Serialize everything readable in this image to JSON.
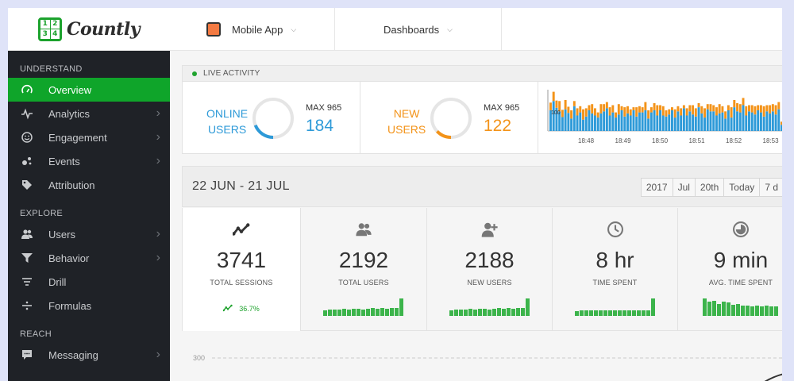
{
  "brand": {
    "logo_text": "Countly",
    "logo_cells": [
      "1",
      "2",
      "3",
      "4"
    ]
  },
  "header": {
    "app_name": "Mobile App",
    "app_color": "#f47a42",
    "dashboards_label": "Dashboards"
  },
  "sidebar": {
    "sections": [
      {
        "title": "UNDERSTAND",
        "items": [
          {
            "label": "Overview",
            "icon": "gauge-icon",
            "active": true,
            "chevron": false
          },
          {
            "label": "Analytics",
            "icon": "pulse-icon",
            "active": false,
            "chevron": true
          },
          {
            "label": "Engagement",
            "icon": "smiley-icon",
            "active": false,
            "chevron": true
          },
          {
            "label": "Events",
            "icon": "events-icon",
            "active": false,
            "chevron": true
          },
          {
            "label": "Attribution",
            "icon": "tag-icon",
            "active": false,
            "chevron": false
          }
        ]
      },
      {
        "title": "EXPLORE",
        "items": [
          {
            "label": "Users",
            "icon": "users-icon",
            "active": false,
            "chevron": true
          },
          {
            "label": "Behavior",
            "icon": "funnel-icon",
            "active": false,
            "chevron": true
          },
          {
            "label": "Drill",
            "icon": "drill-icon",
            "active": false,
            "chevron": false
          },
          {
            "label": "Formulas",
            "icon": "divide-icon",
            "active": false,
            "chevron": false
          }
        ]
      },
      {
        "title": "REACH",
        "items": [
          {
            "label": "Messaging",
            "icon": "chat-icon",
            "active": false,
            "chevron": true
          }
        ]
      }
    ]
  },
  "live": {
    "header": "LIVE ACTIVITY",
    "online": {
      "label_lines": [
        "ONLINE",
        "USERS"
      ],
      "max_label": "MAX 965",
      "value": "184",
      "fraction": 0.19,
      "color": "#2e9ad8"
    },
    "new": {
      "label_lines": [
        "NEW",
        "USERS"
      ],
      "max_label": "MAX 965",
      "value": "122",
      "fraction": 0.13,
      "color": "#f39319"
    },
    "chart_ref_label": "100",
    "time_labels": [
      "18:48",
      "18:49",
      "18:50",
      "18:51",
      "18:52",
      "18:53"
    ]
  },
  "period": {
    "title": "22 JUN - 21 JUL",
    "buttons": [
      "2017",
      "Jul",
      "20th",
      "Today",
      "7 d"
    ]
  },
  "metrics": [
    {
      "value": "3741",
      "label": "TOTAL SESSIONS",
      "icon": "trend-icon",
      "selected": true,
      "trend": "36.7%"
    },
    {
      "value": "2192",
      "label": "TOTAL USERS",
      "icon": "users-icon",
      "selected": false
    },
    {
      "value": "2188",
      "label": "NEW USERS",
      "icon": "add-user-icon",
      "selected": false
    },
    {
      "value": "8 hr",
      "label": "TIME SPENT",
      "icon": "clock-icon",
      "selected": false
    },
    {
      "value": "9 min",
      "label": "AVG. TIME SPENT",
      "icon": "pie-clock-icon",
      "selected": false
    }
  ],
  "chart_data": {
    "type": "bar",
    "title": "",
    "series": [
      {
        "name": "",
        "color": "#2e9ad8",
        "values": [
          40,
          58,
          45,
          38,
          27,
          42,
          35,
          24,
          48,
          30,
          36,
          22,
          28,
          40,
          34,
          30,
          26,
          34,
          38,
          44,
          30,
          36,
          26,
          32,
          40,
          28,
          34,
          30,
          40,
          28,
          36,
          36,
          40,
          24,
          36,
          40,
          30,
          40,
          30,
          28,
          32,
          40,
          26,
          38,
          30,
          44,
          30,
          38,
          32,
          28,
          46,
          34,
          26,
          42,
          38,
          38,
          30,
          34,
          36,
          24,
          40,
          26,
          46,
          38,
          36,
          50,
          30,
          38,
          36,
          32,
          40,
          36,
          28,
          38,
          34,
          38,
          32,
          42,
          12,
          24,
          26,
          30
        ]
      },
      {
        "name": "",
        "color": "#f39319",
        "values": [
          15,
          18,
          14,
          20,
          14,
          18,
          12,
          16,
          10,
          14,
          12,
          20,
          16,
          10,
          18,
          14,
          10,
          18,
          14,
          12,
          16,
          14,
          10,
          20,
          8,
          18,
          14,
          12,
          6,
          18,
          12,
          10,
          16,
          16,
          10,
          14,
          20,
          10,
          18,
          12,
          10,
          6,
          16,
          10,
          14,
          6,
          14,
          12,
          18,
          16,
          8,
          14,
          18,
          10,
          14,
          12,
          16,
          18,
          12,
          14,
          10,
          20,
          14,
          16,
          16,
          14,
          18,
          12,
          14,
          16,
          10,
          14,
          20,
          12,
          16,
          14,
          18,
          14,
          6,
          10,
          14,
          16
        ]
      }
    ],
    "sparklines": [
      [
        6,
        7,
        7,
        7,
        8,
        7,
        8,
        8,
        7,
        8,
        9,
        8,
        9,
        8,
        9,
        9,
        20
      ],
      [
        6,
        7,
        7,
        7,
        8,
        7,
        8,
        8,
        7,
        8,
        9,
        8,
        9,
        8,
        9,
        9,
        20
      ],
      [
        6,
        7,
        7,
        7,
        8,
        7,
        8,
        8,
        7,
        8,
        9,
        8,
        9,
        8,
        9,
        9,
        20
      ],
      [
        5,
        6,
        6,
        6,
        6,
        6,
        6,
        6,
        6,
        6,
        6,
        6,
        6,
        6,
        6,
        6,
        20
      ],
      [
        20,
        16,
        17,
        14,
        16,
        15,
        13,
        14,
        12,
        12,
        11,
        12,
        11,
        12,
        11,
        11
      ]
    ],
    "main_chart_tick": "300"
  }
}
